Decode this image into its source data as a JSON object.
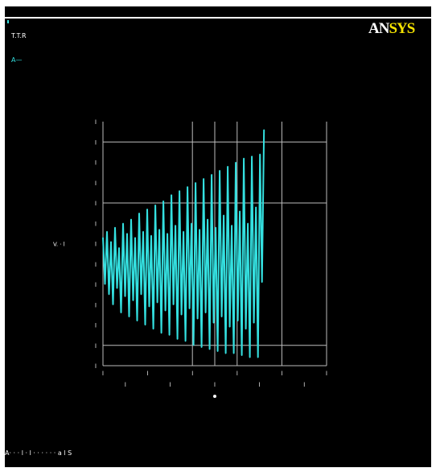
{
  "window": {
    "legend_title": "T.T.R",
    "legend_entry": "A—",
    "logo": {
      "part1": "AN",
      "part2": "SYS"
    },
    "footer": "A· · · l · l · · · · · · a l S"
  },
  "colors": {
    "background": "#000000",
    "series": "#34e0e0",
    "grid": "#bdbdbd",
    "logo_accent": "#f4e200"
  },
  "chart_data": {
    "type": "line",
    "title": "",
    "xlabel": "",
    "ylabel": "",
    "ylabel_axis_text": "V. · l",
    "grid": true,
    "legend": "top-left",
    "xlim": [
      0,
      10
    ],
    "ylim": [
      -6,
      6
    ],
    "x_ticks": [
      {
        "value": 0,
        "label": "l"
      },
      {
        "value": 1,
        "label": "l"
      },
      {
        "value": 2,
        "label": "l"
      },
      {
        "value": 3,
        "label": "l"
      },
      {
        "value": 4,
        "label": "l"
      },
      {
        "value": 5,
        "label": "l"
      },
      {
        "value": 6,
        "label": "l"
      },
      {
        "value": 7,
        "label": "l"
      },
      {
        "value": 8,
        "label": "l"
      },
      {
        "value": 9,
        "label": "l"
      },
      {
        "value": 10,
        "label": "l"
      }
    ],
    "y_ticks": [
      {
        "value": 6,
        "label": "l"
      },
      {
        "value": 5,
        "label": "l"
      },
      {
        "value": 4,
        "label": "l"
      },
      {
        "value": 3,
        "label": "l"
      },
      {
        "value": 2,
        "label": "l"
      },
      {
        "value": 1,
        "label": "l"
      },
      {
        "value": 0,
        "label": "l"
      },
      {
        "value": -1,
        "label": "l"
      },
      {
        "value": -2,
        "label": "l"
      },
      {
        "value": -3,
        "label": "l"
      },
      {
        "value": -4,
        "label": "l"
      },
      {
        "value": -5,
        "label": "l"
      },
      {
        "value": -6,
        "label": "l"
      }
    ],
    "series": [
      {
        "x": [
          0.0,
          0.09,
          0.18,
          0.27,
          0.36,
          0.45,
          0.54,
          0.63,
          0.72,
          0.81,
          0.9,
          0.99,
          1.08,
          1.17,
          1.26,
          1.35,
          1.44,
          1.53,
          1.62,
          1.71,
          1.8,
          1.89,
          1.98,
          2.07,
          2.16,
          2.25,
          2.34,
          2.43,
          2.52,
          2.61,
          2.7,
          2.79,
          2.88,
          2.97,
          3.06,
          3.15,
          3.24,
          3.33,
          3.42,
          3.51,
          3.6,
          3.69,
          3.78,
          3.87,
          3.96,
          4.05,
          4.14,
          4.23,
          4.32,
          4.41,
          4.5,
          4.59,
          4.68,
          4.77,
          4.86,
          4.95,
          5.04,
          5.13,
          5.22,
          5.31,
          5.4,
          5.49,
          5.58,
          5.67,
          5.76,
          5.85,
          5.94,
          6.03,
          6.12,
          6.21,
          6.3,
          6.39,
          6.48,
          6.57,
          6.66,
          6.75,
          6.84,
          6.93,
          7.02,
          7.11,
          7.2
        ],
        "values": [
          0.3,
          -2.0,
          0.6,
          -2.5,
          0.1,
          -3.0,
          0.8,
          -2.2,
          -0.2,
          -3.4,
          1.0,
          -2.6,
          0.5,
          -3.6,
          1.2,
          -2.8,
          0.3,
          -3.8,
          1.5,
          -2.5,
          0.6,
          -4.0,
          1.7,
          -3.1,
          0.4,
          -4.2,
          1.9,
          -2.9,
          0.7,
          -4.4,
          2.1,
          -3.3,
          0.5,
          -4.5,
          2.4,
          -3.0,
          0.9,
          -4.7,
          2.6,
          -3.5,
          0.6,
          -4.8,
          2.8,
          -3.2,
          1.0,
          -5.0,
          3.0,
          -3.7,
          0.7,
          -5.1,
          3.2,
          -3.4,
          1.2,
          -5.2,
          3.4,
          -3.9,
          0.8,
          -5.3,
          3.6,
          -3.6,
          1.4,
          -5.4,
          3.8,
          -4.1,
          0.9,
          -5.4,
          4.0,
          -3.8,
          1.6,
          -5.5,
          4.2,
          -4.2,
          1.0,
          -5.6,
          4.3,
          -3.9,
          1.8,
          -5.6,
          4.4,
          -1.9,
          5.6
        ]
      }
    ]
  }
}
